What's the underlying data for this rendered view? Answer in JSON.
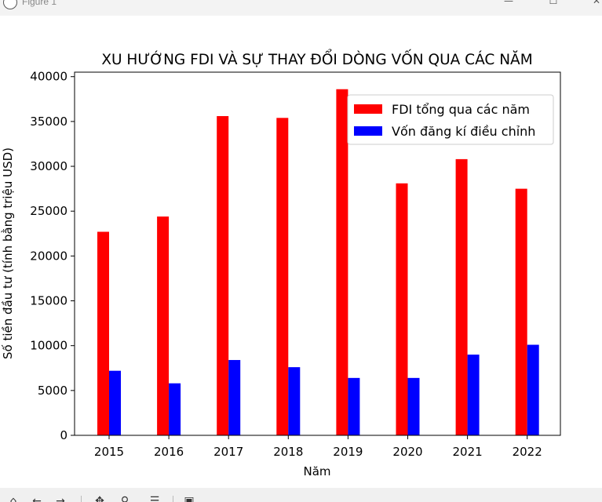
{
  "window": {
    "title": "Figure 1",
    "min_glyph": "—",
    "max_glyph": "☐",
    "close_glyph": "✕"
  },
  "toolbar": {
    "icons": [
      "home-icon",
      "back-arrow-icon",
      "forward-arrow-icon",
      "pan-icon",
      "zoom-icon",
      "configure-subplots-icon",
      "save-icon"
    ]
  },
  "chart_data": {
    "type": "bar",
    "title": "XU HƯỚNG FDI VÀ SỰ THAY ĐỔI DÒNG VỐN QUA CÁC NĂM",
    "xlabel": "Năm",
    "ylabel": "Số tiền đầu tư (tính bằng triệu USD)",
    "categories": [
      "2015",
      "2016",
      "2017",
      "2018",
      "2019",
      "2020",
      "2021",
      "2022"
    ],
    "ylim": [
      0,
      40500
    ],
    "yticks": [
      0,
      5000,
      10000,
      15000,
      20000,
      25000,
      30000,
      35000,
      40000
    ],
    "grid": false,
    "legend_position": "top-right",
    "series": [
      {
        "name": "FDI tổng qua các năm",
        "color": "#ff0000",
        "values": [
          22700,
          24400,
          35600,
          35400,
          38600,
          28100,
          30800,
          27500
        ]
      },
      {
        "name": "Vốn đăng kí điều chỉnh",
        "color": "#0000ff",
        "values": [
          7200,
          5800,
          8400,
          7600,
          6400,
          6400,
          9000,
          10100
        ]
      }
    ]
  }
}
